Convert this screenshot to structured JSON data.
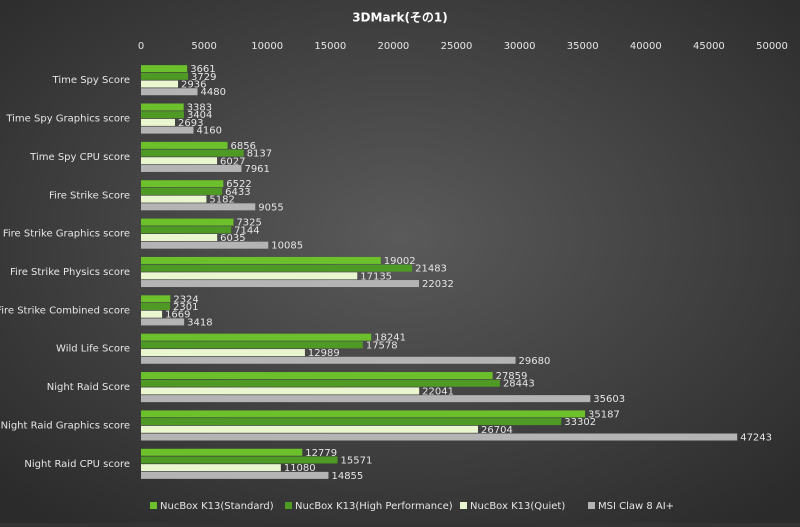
{
  "chart_data": {
    "type": "hbar",
    "title": "3DMark(その1)",
    "categories": [
      "Time Spy Score",
      "Time Spy Graphics score",
      "Time Spy CPU score",
      "Fire Strike Score",
      "Fire Strike Graphics score",
      "Fire Strike Physics score",
      "Fire Strike Combined score",
      "Wild Life Score",
      "Night Raid Score",
      "Night Raid Graphics score",
      "Night Raid CPU score"
    ],
    "series": [
      {
        "name": "NucBox K13(Standard)",
        "color": "#6cc02c",
        "values": [
          3661,
          3383,
          6856,
          6522,
          7325,
          19002,
          2324,
          18241,
          27859,
          35187,
          12779
        ]
      },
      {
        "name": "NucBox K13(High Performance)",
        "color": "#4f9a25",
        "values": [
          3729,
          3404,
          8137,
          6433,
          7144,
          21483,
          2301,
          17578,
          28443,
          33302,
          15571
        ]
      },
      {
        "name": "NucBox K13(Quiet)",
        "color": "#eaf6cf",
        "values": [
          2936,
          2693,
          6027,
          5182,
          6035,
          17135,
          1669,
          12989,
          22041,
          26704,
          11080
        ]
      },
      {
        "name": "MSI Claw 8 AI+",
        "color": "#b4b4b4",
        "values": [
          4480,
          4160,
          7961,
          9055,
          10085,
          22032,
          3418,
          29680,
          35603,
          47243,
          14855
        ]
      }
    ],
    "xlim": [
      0,
      50000
    ],
    "xticks": [
      0,
      5000,
      10000,
      15000,
      20000,
      25000,
      30000,
      35000,
      40000,
      45000,
      50000
    ],
    "grid": false,
    "legend": "bottom"
  }
}
